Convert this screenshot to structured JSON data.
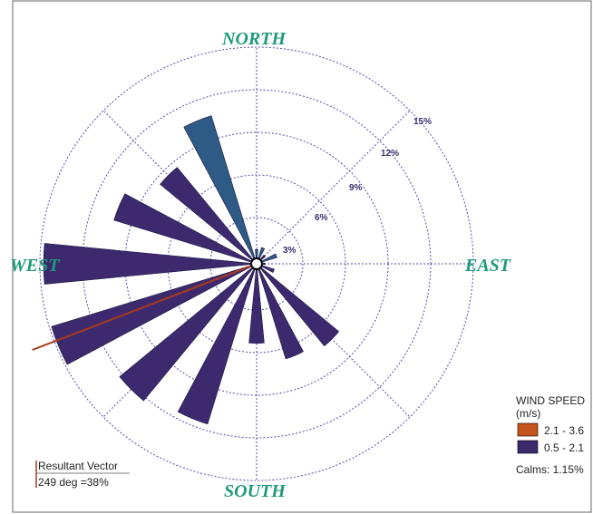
{
  "chart_data": {
    "type": "wind-rose",
    "directions": {
      "north": "NORTH",
      "south": "SOUTH",
      "east": "EAST",
      "west": "WEST"
    },
    "ring_labels": [
      "3%",
      "6%",
      "9%",
      "12%",
      "15%"
    ],
    "rings": [
      3,
      6,
      9,
      12,
      15
    ],
    "sector_count": 16,
    "legend": {
      "title_line1": "WIND SPEED",
      "title_line2": "(m/s)",
      "entries": [
        {
          "label": "2.1 - 3.6",
          "color": "#c4541b"
        },
        {
          "label": "0.5 - 2.1",
          "color": "#3d2a6e"
        }
      ],
      "calms": "Calms: 1.15%"
    },
    "resultant_vector": {
      "line1": "Resultant Vector",
      "line2": "249 deg =38%",
      "direction_deg": 249,
      "value_pct": 38,
      "color": "#a83a1c"
    },
    "colors": {
      "low": "#3d2a6e",
      "north": "#2e5a86",
      "vector": "#a83a1c",
      "grid": "#5b4aa8"
    },
    "series": [
      {
        "direction_deg": 0,
        "value_pct": 1.0,
        "color": "#2e5a86"
      },
      {
        "direction_deg": 22.5,
        "value_pct": 1.2,
        "color": "#2e5a86"
      },
      {
        "direction_deg": 45,
        "value_pct": 0.8,
        "color": "#3d2a6e"
      },
      {
        "direction_deg": 67.5,
        "value_pct": 1.5,
        "color": "#2e5a86"
      },
      {
        "direction_deg": 90,
        "value_pct": 0.6,
        "color": "#3d2a6e"
      },
      {
        "direction_deg": 112.5,
        "value_pct": 1.3,
        "color": "#3d2a6e"
      },
      {
        "direction_deg": 135,
        "value_pct": 7.5,
        "color": "#3d2a6e"
      },
      {
        "direction_deg": 157.5,
        "value_pct": 7.0,
        "color": "#3d2a6e"
      },
      {
        "direction_deg": 180,
        "value_pct": 5.6,
        "color": "#3d2a6e"
      },
      {
        "direction_deg": 202.5,
        "value_pct": 11.8,
        "color": "#3d2a6e"
      },
      {
        "direction_deg": 225,
        "value_pct": 12.5,
        "color": "#3d2a6e"
      },
      {
        "direction_deg": 247.5,
        "value_pct": 15.1,
        "color": "#3d2a6e"
      },
      {
        "direction_deg": 270,
        "value_pct": 15.0,
        "color": "#3d2a6e"
      },
      {
        "direction_deg": 292.5,
        "value_pct": 10.5,
        "color": "#3d2a6e"
      },
      {
        "direction_deg": 315,
        "value_pct": 8.8,
        "color": "#3d2a6e"
      },
      {
        "direction_deg": 337.5,
        "value_pct": 10.9,
        "color": "#2e5a86"
      }
    ]
  }
}
